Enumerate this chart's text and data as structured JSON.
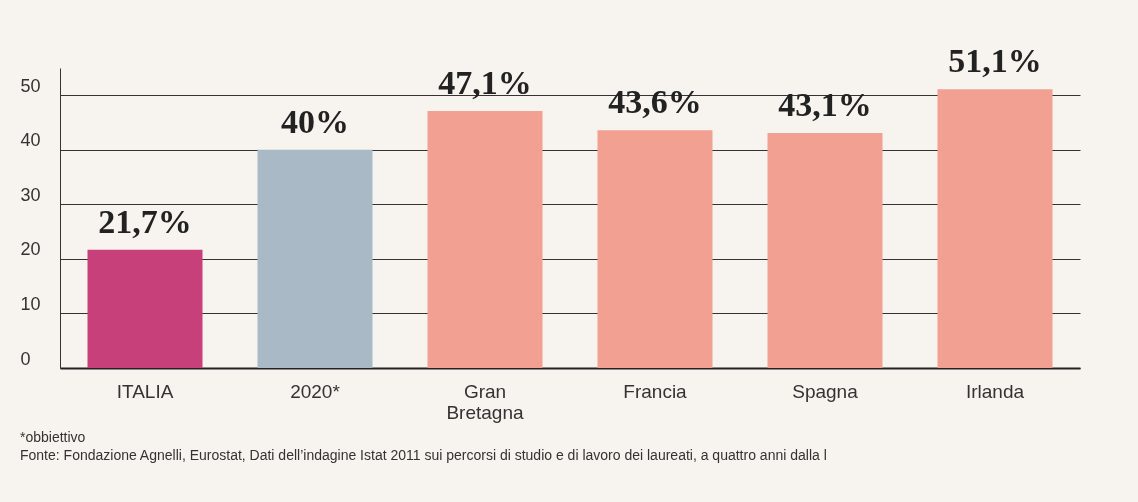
{
  "chart_data": {
    "type": "bar",
    "categories": [
      "ITALIA",
      "2020*",
      "Gran Bretagna",
      "Francia",
      "Spagna",
      "Irlanda"
    ],
    "values": [
      21.7,
      40,
      47.1,
      43.6,
      43.1,
      51.1
    ],
    "colors": [
      "#c8407a",
      "#a9b9c6",
      "#f2a091",
      "#f2a091",
      "#f2a091",
      "#f2a091"
    ],
    "value_labels": [
      "21,7%",
      "40%",
      "47,1%",
      "43,6%",
      "43,1%",
      "51,1%"
    ],
    "ylim": [
      0,
      55
    ],
    "yticks": [
      0,
      10,
      20,
      30,
      40,
      50
    ],
    "grid": "y",
    "annotations": [
      "*obbiettivo",
      "Fonte: Fondazione Agnelli, Eurostat, Dati dell’indagine Istat 2011 sui percorsi di studio e di lavoro dei laureati, a quattro anni dalla l"
    ]
  }
}
